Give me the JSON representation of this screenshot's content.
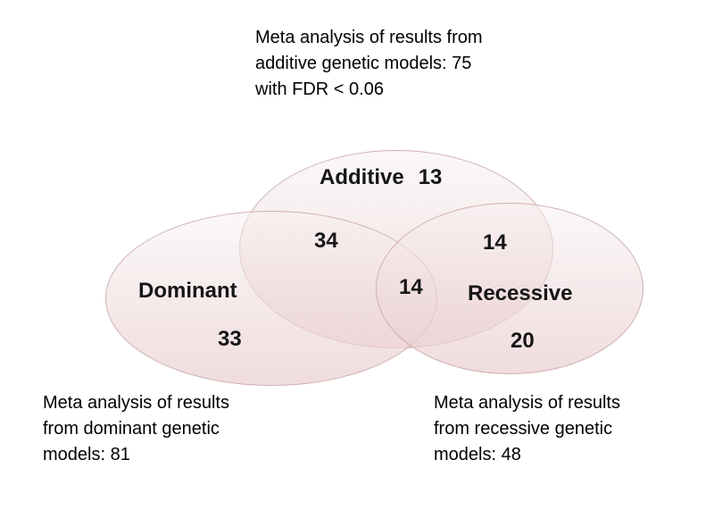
{
  "annotations": {
    "top": {
      "lines": [
        "Meta analysis of results from",
        "additive genetic models: 75",
        "with FDR < 0.06"
      ]
    },
    "bottom_left": {
      "lines": [
        "Meta analysis of results",
        "from dominant genetic",
        "models: 81"
      ]
    },
    "bottom_right": {
      "lines": [
        "Meta analysis of results",
        "from recessive genetic",
        "models: 48"
      ]
    }
  },
  "venn": {
    "type": "venn",
    "sets": [
      {
        "id": "additive",
        "label": "Additive",
        "total_shown_in_annotation": 75,
        "unique": "13"
      },
      {
        "id": "dominant",
        "label": "Dominant",
        "total_shown_in_annotation": 81,
        "unique": "33"
      },
      {
        "id": "recessive",
        "label": "Recessive",
        "total_shown_in_annotation": 48,
        "unique": "20"
      }
    ],
    "intersections": [
      {
        "sets": [
          "additive",
          "dominant"
        ],
        "value": "34"
      },
      {
        "sets": [
          "additive",
          "recessive"
        ],
        "value": "14"
      },
      {
        "sets": [
          "additive",
          "dominant",
          "recessive"
        ],
        "value": "14"
      }
    ],
    "colors": {
      "fill_top": "#f8f1f1",
      "fill_bottom": "#e9ced0",
      "border": "#c69da0"
    }
  }
}
